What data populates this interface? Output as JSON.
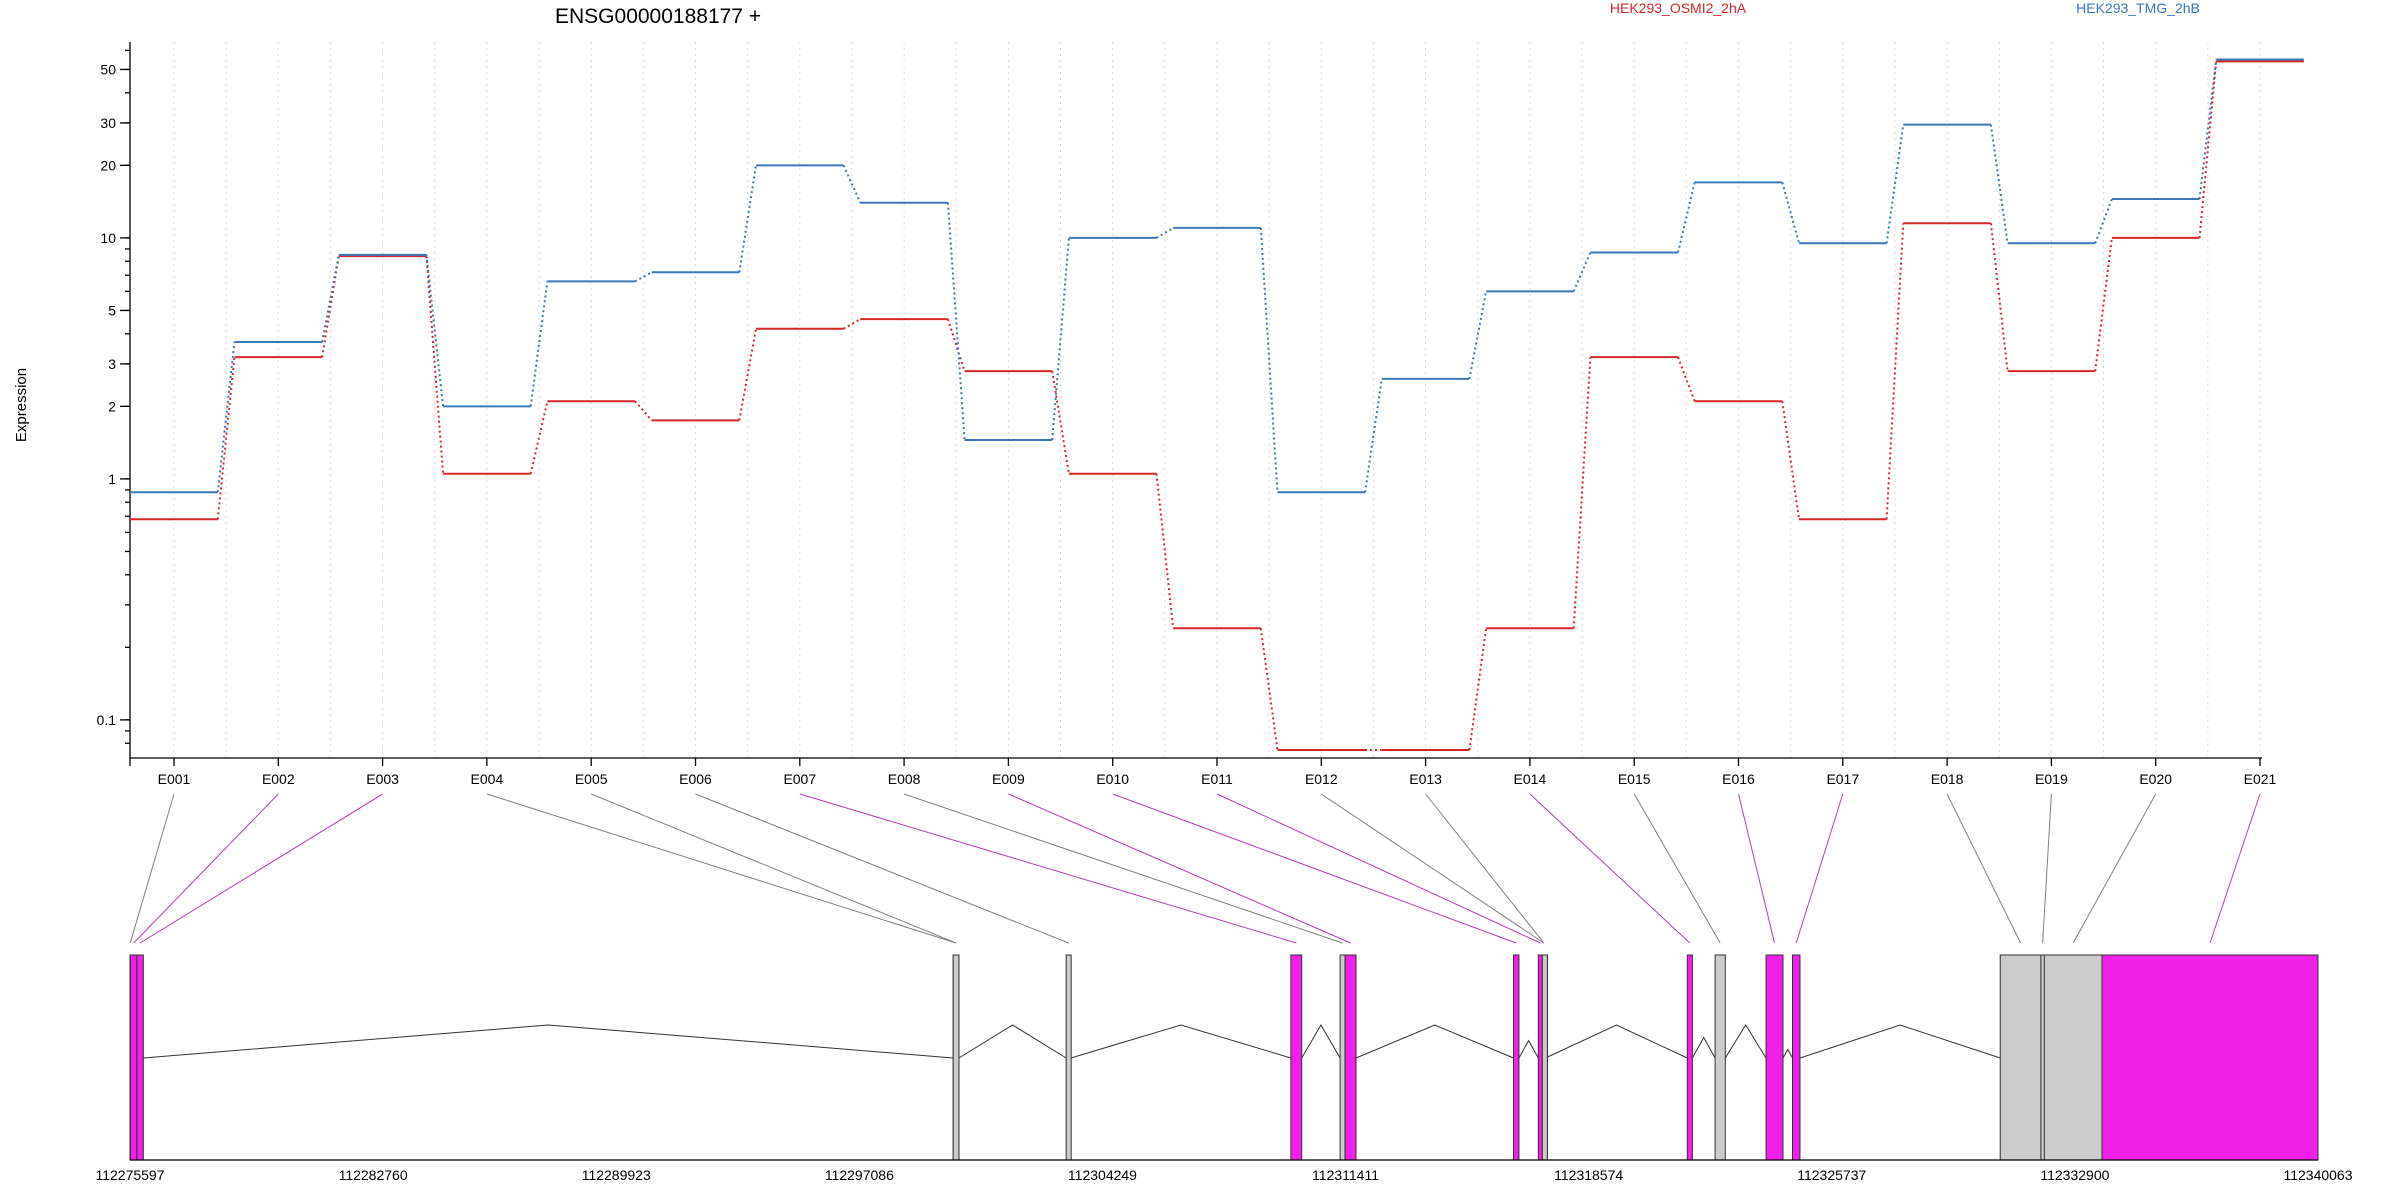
{
  "chart_data": {
    "type": "line",
    "title": "ENSG00000188177 +",
    "ylabel": "Expression",
    "xlabel": "",
    "y_scale": "log",
    "ylim": [
      0.075,
      65
    ],
    "y_ticks": [
      {
        "value": 50,
        "label": "50"
      },
      {
        "value": 30,
        "label": "30"
      },
      {
        "value": 20,
        "label": "20"
      },
      {
        "value": 10,
        "label": "10"
      },
      {
        "value": 5,
        "label": "5"
      },
      {
        "value": 3,
        "label": "3"
      },
      {
        "value": 2,
        "label": "2"
      },
      {
        "value": 1,
        "label": "1"
      },
      {
        "value": 0.1,
        "label": "0.1"
      }
    ],
    "categories": [
      "E001",
      "E002",
      "E003",
      "E004",
      "E005",
      "E006",
      "E007",
      "E008",
      "E009",
      "E010",
      "E011",
      "E012",
      "E013",
      "E014",
      "E015",
      "E016",
      "E017",
      "E018",
      "E019",
      "E020",
      "E021"
    ],
    "series": [
      {
        "name": "HEK293_OSMI2_2hA",
        "color": "#d62728",
        "values": [
          0.68,
          3.2,
          8.4,
          1.05,
          2.1,
          1.75,
          4.2,
          4.6,
          2.8,
          1.05,
          0.24,
          0.075,
          0.075,
          0.24,
          3.2,
          2.1,
          0.68,
          11.5,
          2.8,
          10.0,
          54
        ]
      },
      {
        "name": "HEK293_TMG_2hB",
        "color": "#3a78b8",
        "values": [
          0.88,
          3.7,
          8.5,
          2.0,
          6.6,
          7.2,
          20.0,
          14.0,
          1.45,
          10.0,
          11.0,
          0.88,
          2.6,
          6.0,
          8.7,
          17.0,
          9.5,
          29.5,
          9.5,
          14.5,
          55
        ]
      }
    ],
    "legend_placement": "top",
    "grid": "vertical dotted",
    "gene_model": {
      "coord_range": [
        112275597,
        112340063
      ],
      "coord_ticks": [
        {
          "value": 112275597,
          "label": "112275597"
        },
        {
          "value": 112282760,
          "label": "112282760"
        },
        {
          "value": 112289923,
          "label": "112289923"
        },
        {
          "value": 112297086,
          "label": "112297086"
        },
        {
          "value": 112304249,
          "label": "112304249"
        },
        {
          "value": 112311411,
          "label": "112311411"
        },
        {
          "value": 112318574,
          "label": "112318574"
        },
        {
          "value": 112325737,
          "label": "112325737"
        },
        {
          "value": 112332900,
          "label": "112332900"
        },
        {
          "value": 112340063,
          "label": "112340063"
        }
      ],
      "exons": [
        {
          "id": "E001",
          "start": 112275597,
          "end": 112275610,
          "significant": false
        },
        {
          "id": "E002",
          "start": 112275610,
          "end": 112275800,
          "significant": true
        },
        {
          "id": "E003",
          "start": 112275800,
          "end": 112275990,
          "significant": true
        },
        {
          "id": "E004",
          "start": 112299850,
          "end": 112300020,
          "significant": false
        },
        {
          "id": "E005",
          "start": 112299850,
          "end": 112300020,
          "significant": false
        },
        {
          "id": "E006",
          "start": 112303180,
          "end": 112303320,
          "significant": false
        },
        {
          "id": "E007",
          "start": 112309800,
          "end": 112310120,
          "significant": true
        },
        {
          "id": "E008",
          "start": 112311250,
          "end": 112311390,
          "significant": false
        },
        {
          "id": "E009",
          "start": 112311400,
          "end": 112311720,
          "significant": true
        },
        {
          "id": "E010",
          "start": 112316360,
          "end": 112316520,
          "significant": true
        },
        {
          "id": "E011",
          "start": 112317090,
          "end": 112317210,
          "significant": true
        },
        {
          "id": "E012",
          "start": 112317210,
          "end": 112317300,
          "significant": false
        },
        {
          "id": "E013",
          "start": 112317210,
          "end": 112317300,
          "significant": false
        },
        {
          "id": "E014",
          "start": 112321480,
          "end": 112321630,
          "significant": true
        },
        {
          "id": "E015",
          "start": 112322300,
          "end": 112322600,
          "significant": false
        },
        {
          "id": "E016",
          "start": 112323800,
          "end": 112324300,
          "significant": true
        },
        {
          "id": "E017",
          "start": 112324580,
          "end": 112324800,
          "significant": true
        },
        {
          "id": "E018",
          "start": 112330700,
          "end": 112331900,
          "significant": false
        },
        {
          "id": "E019",
          "start": 112331900,
          "end": 112332000,
          "significant": false
        },
        {
          "id": "E020",
          "start": 112332000,
          "end": 112333700,
          "significant": false
        },
        {
          "id": "E021",
          "start": 112333700,
          "end": 112340063,
          "significant": true
        }
      ],
      "colors": {
        "significant": "#f020e8",
        "normal": "#cccccc",
        "connector_significant": "#b040b0",
        "connector_normal": "#808080"
      }
    }
  }
}
